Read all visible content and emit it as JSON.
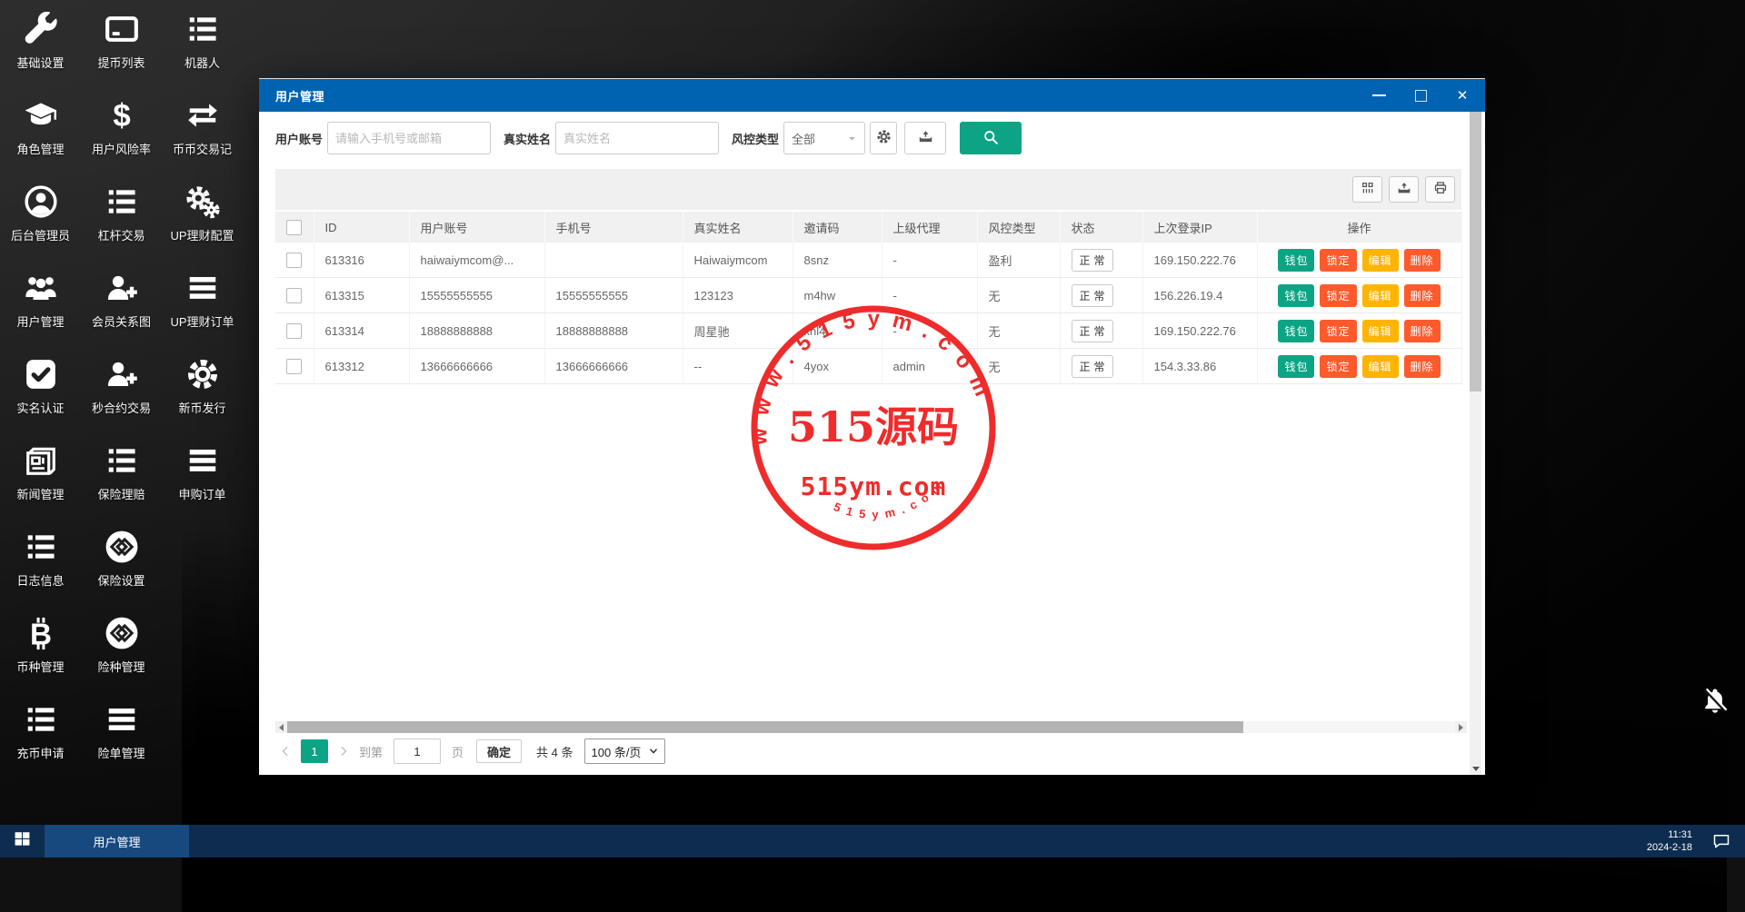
{
  "desktop": {
    "icon_rows": [
      {
        "items": [
          {
            "label": "基础设置",
            "icon": "wrench"
          },
          {
            "label": "提币列表",
            "icon": "credit-card"
          },
          {
            "label": "机器人",
            "icon": "list"
          }
        ]
      },
      {
        "items": [
          {
            "label": "角色管理",
            "icon": "graduation-cap"
          },
          {
            "label": "用户风险率",
            "icon": "dollar"
          },
          {
            "label": "币币交易记",
            "icon": "exchange-arrows"
          }
        ]
      },
      {
        "items": [
          {
            "label": "后台管理员",
            "icon": "user-circle"
          },
          {
            "label": "杠杆交易",
            "icon": "list"
          },
          {
            "label": "UP理财配置",
            "icon": "gears"
          }
        ]
      },
      {
        "items": [
          {
            "label": "用户管理",
            "icon": "users"
          },
          {
            "label": "会员关系图",
            "icon": "user-plus"
          },
          {
            "label": "UP理财订单",
            "icon": "bars"
          }
        ]
      },
      {
        "items": [
          {
            "label": "实名认证",
            "icon": "check-square"
          },
          {
            "label": "秒合约交易",
            "icon": "user-plus"
          },
          {
            "label": "新币发行",
            "icon": "gear"
          }
        ]
      },
      {
        "items": [
          {
            "label": "新闻管理",
            "icon": "newspaper"
          },
          {
            "label": "保险理赔",
            "icon": "list"
          },
          {
            "label": "申购订单",
            "icon": "bars"
          }
        ]
      },
      {
        "items": [
          {
            "label": "日志信息",
            "icon": "list"
          },
          {
            "label": "保险设置",
            "icon": "link-circle"
          }
        ]
      },
      {
        "items": [
          {
            "label": "币种管理",
            "icon": "bitcoin"
          },
          {
            "label": "险种管理",
            "icon": "link-circle"
          }
        ]
      },
      {
        "items": [
          {
            "label": "充币申请",
            "icon": "list"
          },
          {
            "label": "险单管理",
            "icon": "bars"
          }
        ]
      }
    ],
    "bell_icon": "notifications-off"
  },
  "window": {
    "title": "用户管理",
    "filters": {
      "account_label": "用户账号",
      "account_placeholder": "请输入手机号或邮箱",
      "name_label": "真实姓名",
      "name_placeholder": "真实姓名",
      "risk_label": "风控类型",
      "risk_value": "全部"
    },
    "toolbar": {
      "buttons": [
        {
          "icon": "column-settings",
          "name": "column-settings-button"
        },
        {
          "icon": "export-tray",
          "name": "export-button"
        },
        {
          "icon": "printer",
          "name": "print-button"
        }
      ]
    },
    "table": {
      "headers": [
        "ID",
        "用户账号",
        "手机号",
        "真实姓名",
        "邀请码",
        "上级代理",
        "风控类型",
        "状态",
        "上次登录IP",
        "操作"
      ],
      "rows": [
        {
          "id": "613316",
          "account": "haiwaiymcom@...",
          "phone": "",
          "real_name": "Haiwaiymcom",
          "invite": "8snz",
          "agent": "-",
          "risk": "盈利",
          "status": "正常",
          "ip": "169.150.222.76"
        },
        {
          "id": "613315",
          "account": "15555555555",
          "phone": "15555555555",
          "real_name": "123123",
          "invite": "m4hw",
          "agent": "-",
          "risk": "无",
          "status": "正常",
          "ip": "156.226.19.4"
        },
        {
          "id": "613314",
          "account": "18888888888",
          "phone": "18888888888",
          "real_name": "周星驰",
          "invite": "xnl4",
          "agent": "-",
          "risk": "无",
          "status": "正常",
          "ip": "169.150.222.76"
        },
        {
          "id": "613312",
          "account": "13666666666",
          "phone": "13666666666",
          "real_name": "--",
          "invite": "4yox",
          "agent": "admin",
          "risk": "无",
          "status": "正常",
          "ip": "154.3.33.86"
        }
      ],
      "actions": [
        {
          "label": "钱包",
          "color": "#0ca485"
        },
        {
          "label": "锁定",
          "color": "#ff5a2c"
        },
        {
          "label": "编辑",
          "color": "#ffb400"
        },
        {
          "label": "删除",
          "color": "#ff5a2c"
        }
      ]
    },
    "pagination": {
      "current_page": "1",
      "goto_label": "到第",
      "goto_value": "1",
      "page_label": "页",
      "confirm_label": "确定",
      "total_label": "共 4 条",
      "page_size": "100 条/页"
    }
  },
  "watermark": {
    "line1": "515源码",
    "line2": "515ym.com",
    "arc_top": "w w w . 5 1 5 y m . c o m",
    "arc_bottom": "5 1 5 y m . c o m",
    "color": "#ed1f1f"
  },
  "taskbar": {
    "active_item": "用户管理",
    "time": "11:31",
    "date": "2024-2-18"
  },
  "colors": {
    "titlebar_blue": "#0063b1",
    "accent_teal": "#0ca485",
    "danger_orange": "#ff5a2c",
    "warn_amber": "#ffb400",
    "taskbar_navy": "#0d2c4f"
  }
}
